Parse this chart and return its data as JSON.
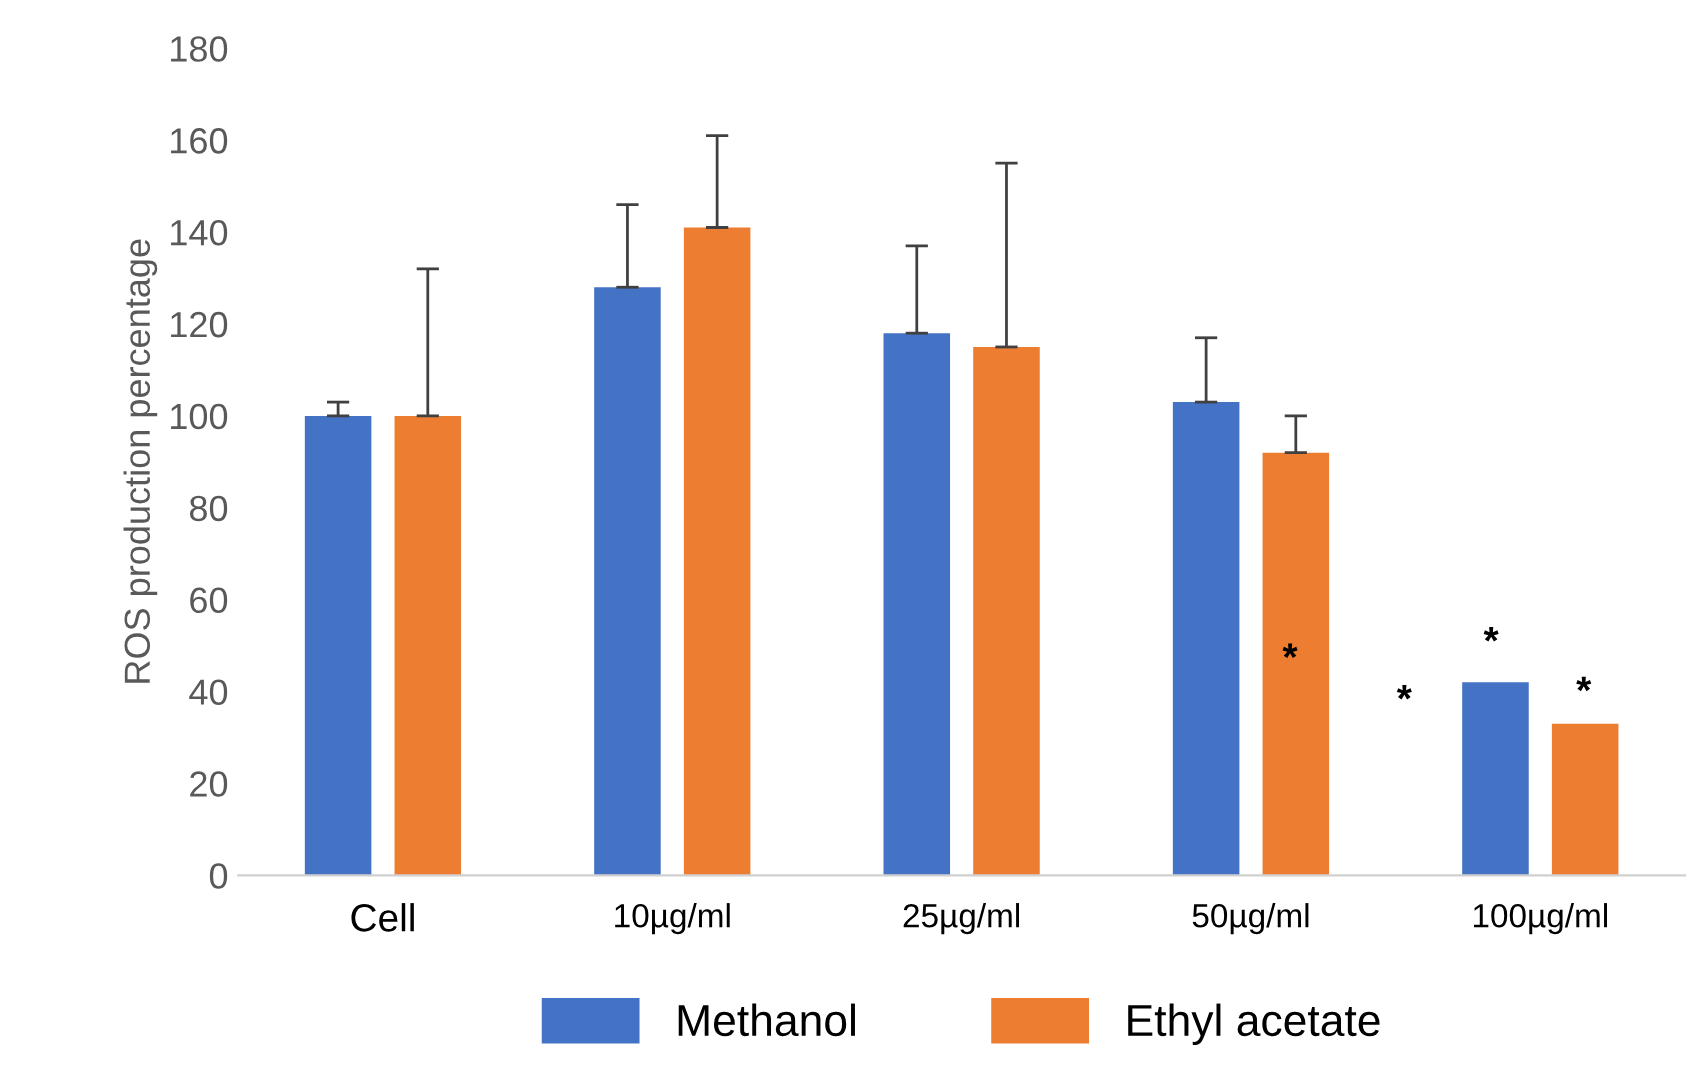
{
  "chart_data": {
    "type": "bar",
    "ylabel": "ROS production percentage",
    "categories": [
      "Cell",
      "10µg/ml",
      "25µg/ml",
      "50µg/ml",
      "100µg/ml"
    ],
    "series": [
      {
        "name": "Methanol",
        "color": "#4472c4",
        "values": [
          100,
          128,
          118,
          103,
          42
        ],
        "errors": [
          [
            100,
            103
          ],
          [
            128,
            146
          ],
          [
            118,
            137
          ],
          [
            103,
            117
          ],
          null
        ]
      },
      {
        "name": "Ethyl acetate",
        "color": "#ed7d31",
        "values": [
          100,
          141,
          115,
          92,
          33
        ],
        "errors": [
          [
            100,
            132
          ],
          [
            141,
            161
          ],
          [
            115,
            155
          ],
          [
            92,
            100
          ],
          null
        ]
      }
    ],
    "ylim": [
      0,
      180
    ],
    "yticks": [
      0,
      20,
      40,
      60,
      80,
      100,
      120,
      140,
      160,
      180
    ],
    "grid": false,
    "legend": "bottom",
    "annotations": [
      "*",
      "*",
      "*",
      "*"
    ]
  }
}
